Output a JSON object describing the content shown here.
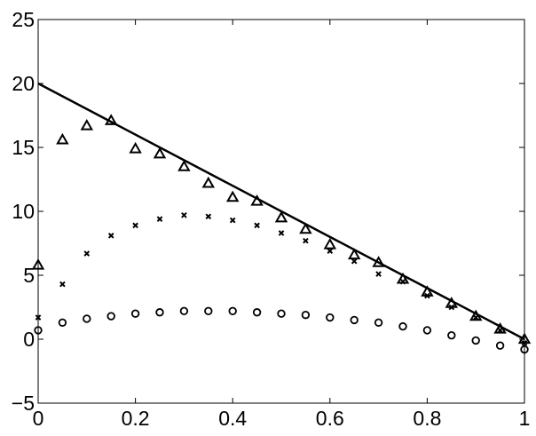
{
  "chart_data": {
    "type": "scatter",
    "title": "",
    "xlabel": "",
    "ylabel": "",
    "xlim": [
      0,
      1
    ],
    "ylim": [
      -5,
      25
    ],
    "x_ticks": [
      0,
      0.2,
      0.4,
      0.6,
      0.8,
      1
    ],
    "x_tick_labels": [
      "0",
      "0.2",
      "0.4",
      "0.6",
      "0.8",
      "1"
    ],
    "y_ticks": [
      -5,
      0,
      5,
      10,
      15,
      20,
      25
    ],
    "y_tick_labels": [
      "−5",
      "0",
      "5",
      "10",
      "15",
      "20",
      "25"
    ],
    "grid": false,
    "legend": "none",
    "line": {
      "x": [
        0,
        1
      ],
      "y": [
        20,
        0
      ]
    },
    "series": [
      {
        "marker": "triangle",
        "x": [
          0,
          0.05,
          0.1,
          0.15,
          0.2,
          0.25,
          0.3,
          0.35,
          0.4,
          0.45,
          0.5,
          0.55,
          0.6,
          0.65,
          0.7,
          0.75,
          0.8,
          0.85,
          0.9,
          0.95,
          1
        ],
        "y": [
          5.8,
          15.6,
          16.7,
          17.1,
          14.9,
          14.5,
          13.5,
          12.2,
          11.1,
          10.8,
          9.5,
          8.6,
          7.4,
          6.6,
          6.0,
          4.7,
          3.7,
          2.8,
          1.8,
          0.8,
          0.0
        ]
      },
      {
        "marker": "x",
        "x": [
          0,
          0.05,
          0.1,
          0.15,
          0.2,
          0.25,
          0.3,
          0.35,
          0.4,
          0.45,
          0.5,
          0.55,
          0.6,
          0.65,
          0.7,
          0.75,
          0.8,
          0.85,
          0.9,
          0.95,
          1
        ],
        "y": [
          1.7,
          4.3,
          6.7,
          8.1,
          8.9,
          9.4,
          9.7,
          9.6,
          9.3,
          8.9,
          8.3,
          7.7,
          6.9,
          6.1,
          5.1,
          4.5,
          3.4,
          2.5,
          1.7,
          0.7,
          -0.3
        ]
      },
      {
        "marker": "circle",
        "x": [
          0,
          0.05,
          0.1,
          0.15,
          0.2,
          0.25,
          0.3,
          0.35,
          0.4,
          0.45,
          0.5,
          0.55,
          0.6,
          0.65,
          0.7,
          0.75,
          0.8,
          0.85,
          0.9,
          0.95,
          1
        ],
        "y": [
          0.7,
          1.3,
          1.6,
          1.8,
          2.0,
          2.1,
          2.2,
          2.2,
          2.2,
          2.1,
          2.0,
          1.9,
          1.7,
          1.5,
          1.3,
          1.0,
          0.7,
          0.3,
          -0.1,
          -0.5,
          -0.8
        ]
      }
    ]
  }
}
